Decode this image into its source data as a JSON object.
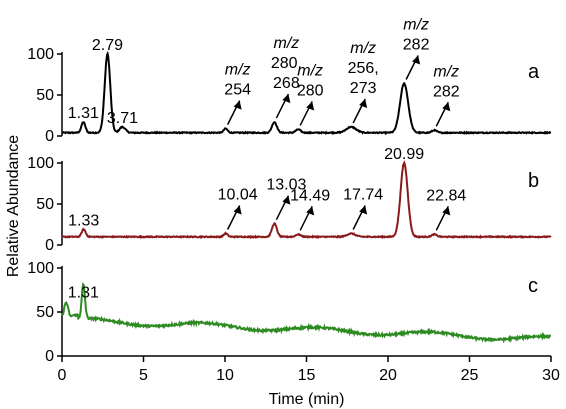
{
  "chart_data": {
    "type": "line",
    "xlabel": "Time (min)",
    "ylabel": "Relative Abundance",
    "xlim": [
      0,
      30
    ],
    "xticks": [
      0,
      5,
      10,
      15,
      20,
      25,
      30
    ],
    "ylim": [
      0,
      100
    ],
    "yticks": [
      0,
      50,
      100
    ],
    "panels": [
      {
        "label": "a",
        "color": "#000000",
        "peaks": [
          {
            "x": 1.31,
            "height": 13,
            "width": 0.12
          },
          {
            "x": 2.79,
            "height": 96,
            "width": 0.17
          },
          {
            "x": 3.71,
            "height": 7,
            "width": 0.18
          },
          {
            "x": 10.04,
            "height": 5,
            "width": 0.12
          },
          {
            "x": 13.03,
            "height": 13,
            "width": 0.15
          },
          {
            "x": 14.49,
            "height": 4,
            "width": 0.15
          },
          {
            "x": 17.74,
            "height": 7,
            "width": 0.3
          },
          {
            "x": 20.99,
            "height": 60,
            "width": 0.25
          },
          {
            "x": 22.84,
            "height": 3,
            "width": 0.15
          }
        ],
        "annotations": [
          {
            "x": 1.31,
            "lines": [
              "1.31"
            ],
            "arrow": false
          },
          {
            "x": 2.79,
            "lines": [
              "2.79"
            ],
            "arrow": false
          },
          {
            "x": 3.71,
            "lines": [
              "3.71"
            ],
            "arrow": false
          },
          {
            "x": 10.04,
            "lines": [
              "m/z",
              "254"
            ],
            "arrow": true
          },
          {
            "x": 13.03,
            "lines": [
              "m/z",
              "280,",
              "268"
            ],
            "arrow": true
          },
          {
            "x": 14.49,
            "lines": [
              "m/z",
              "280"
            ],
            "arrow": true
          },
          {
            "x": 17.74,
            "lines": [
              "m/z",
              "256,",
              "273"
            ],
            "arrow": true
          },
          {
            "x": 20.99,
            "lines": [
              "m/z",
              "282"
            ],
            "arrow": true
          },
          {
            "x": 22.84,
            "lines": [
              "m/z",
              "282"
            ],
            "arrow": true
          }
        ]
      },
      {
        "label": "b",
        "color": "#8b1a1a",
        "peaks": [
          {
            "x": 1.33,
            "height": 9,
            "width": 0.12
          },
          {
            "x": 10.04,
            "height": 4,
            "width": 0.12
          },
          {
            "x": 13.03,
            "height": 16,
            "width": 0.15
          },
          {
            "x": 14.49,
            "height": 3,
            "width": 0.15
          },
          {
            "x": 17.74,
            "height": 4,
            "width": 0.25
          },
          {
            "x": 20.99,
            "height": 90,
            "width": 0.22
          },
          {
            "x": 22.84,
            "height": 3,
            "width": 0.15
          }
        ],
        "annotations": [
          {
            "x": 1.33,
            "lines": [
              "1.33"
            ],
            "arrow": false
          },
          {
            "x": 10.04,
            "lines": [
              "10.04"
            ],
            "arrow": true
          },
          {
            "x": 13.03,
            "lines": [
              "13.03"
            ],
            "arrow": true
          },
          {
            "x": 14.49,
            "lines": [
              "14.49"
            ],
            "arrow": true
          },
          {
            "x": 17.74,
            "lines": [
              "17.74"
            ],
            "arrow": true
          },
          {
            "x": 20.99,
            "lines": [
              "20.99"
            ],
            "arrow": false
          },
          {
            "x": 22.84,
            "lines": [
              "22.84"
            ],
            "arrow": true
          }
        ]
      },
      {
        "label": "c",
        "color": "#2e8b22",
        "peaks": [
          {
            "x": 1.31,
            "height": 38,
            "width": 0.1
          }
        ],
        "annotations": [
          {
            "x": 1.31,
            "lines": [
              "1.31"
            ],
            "arrow": false
          }
        ]
      }
    ]
  }
}
